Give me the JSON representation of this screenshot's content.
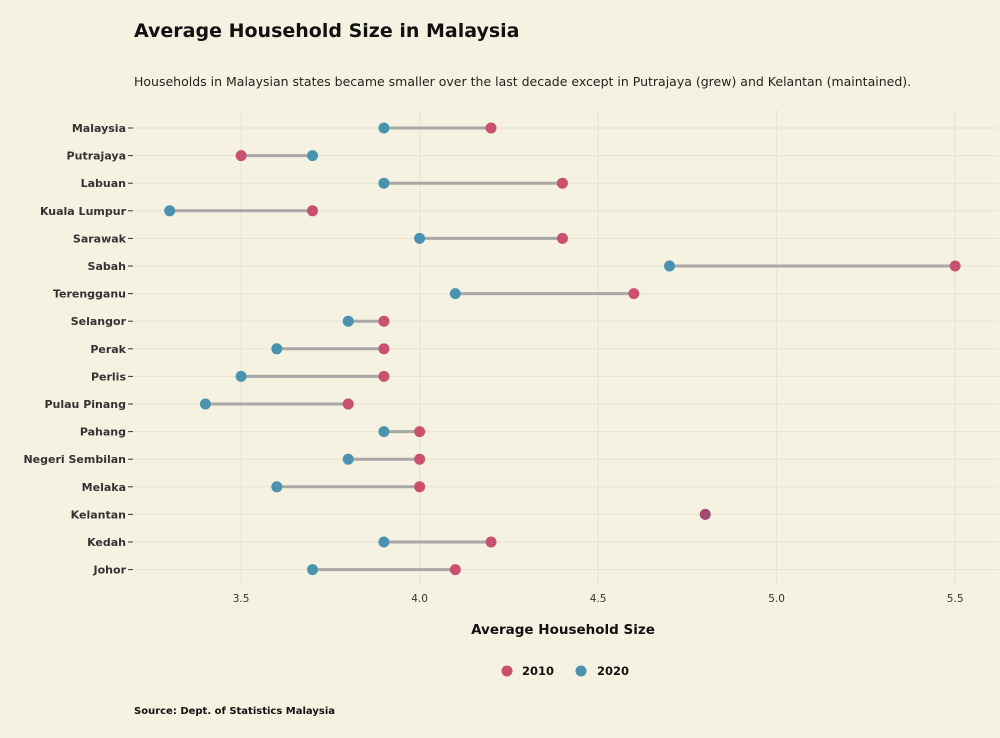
{
  "header": {
    "title": "Average Household Size in Malaysia",
    "subtitle": "Households in Malaysian states became smaller over the last decade except in Putrajaya (grew) and Kelantan (maintained).",
    "source": "Source: Dept. of Statistics Malaysia"
  },
  "chart_data": {
    "type": "dumbbell",
    "title": "Average Household Size in Malaysia",
    "subtitle": "Households in Malaysian states became smaller over the last decade except in Putrajaya (grew) and Kelantan (maintained).",
    "xlabel": "Average Household Size",
    "ylabel": "",
    "xlim": [
      3.2,
      5.62
    ],
    "xticks": [
      "3.5",
      "4.0",
      "4.5",
      "5.0",
      "5.5"
    ],
    "categories": [
      "Malaysia",
      "Putrajaya",
      "Labuan",
      "Kuala Lumpur",
      "Sarawak",
      "Sabah",
      "Terengganu",
      "Selangor",
      "Perak",
      "Perlis",
      "Pulau Pinang",
      "Pahang",
      "Negeri Sembilan",
      "Melaka",
      "Kelantan",
      "Kedah",
      "Johor"
    ],
    "series": [
      {
        "name": "2010",
        "color": "#c9506f",
        "values": [
          4.2,
          3.5,
          4.4,
          3.7,
          4.4,
          5.5,
          4.6,
          3.9,
          3.9,
          3.9,
          3.8,
          4.0,
          4.0,
          4.0,
          4.8,
          4.2,
          4.1
        ]
      },
      {
        "name": "2020",
        "color": "#4a93b0",
        "values": [
          3.9,
          3.7,
          3.9,
          3.3,
          4.0,
          4.7,
          4.1,
          3.8,
          3.6,
          3.5,
          3.4,
          3.9,
          3.8,
          3.6,
          4.8,
          3.9,
          3.7
        ]
      }
    ],
    "colors": {
      "connector": "#a9a8a6",
      "grid": "#e6e2d2",
      "overlap": "#a04a6e"
    },
    "legend": "bottom",
    "grid": true
  }
}
